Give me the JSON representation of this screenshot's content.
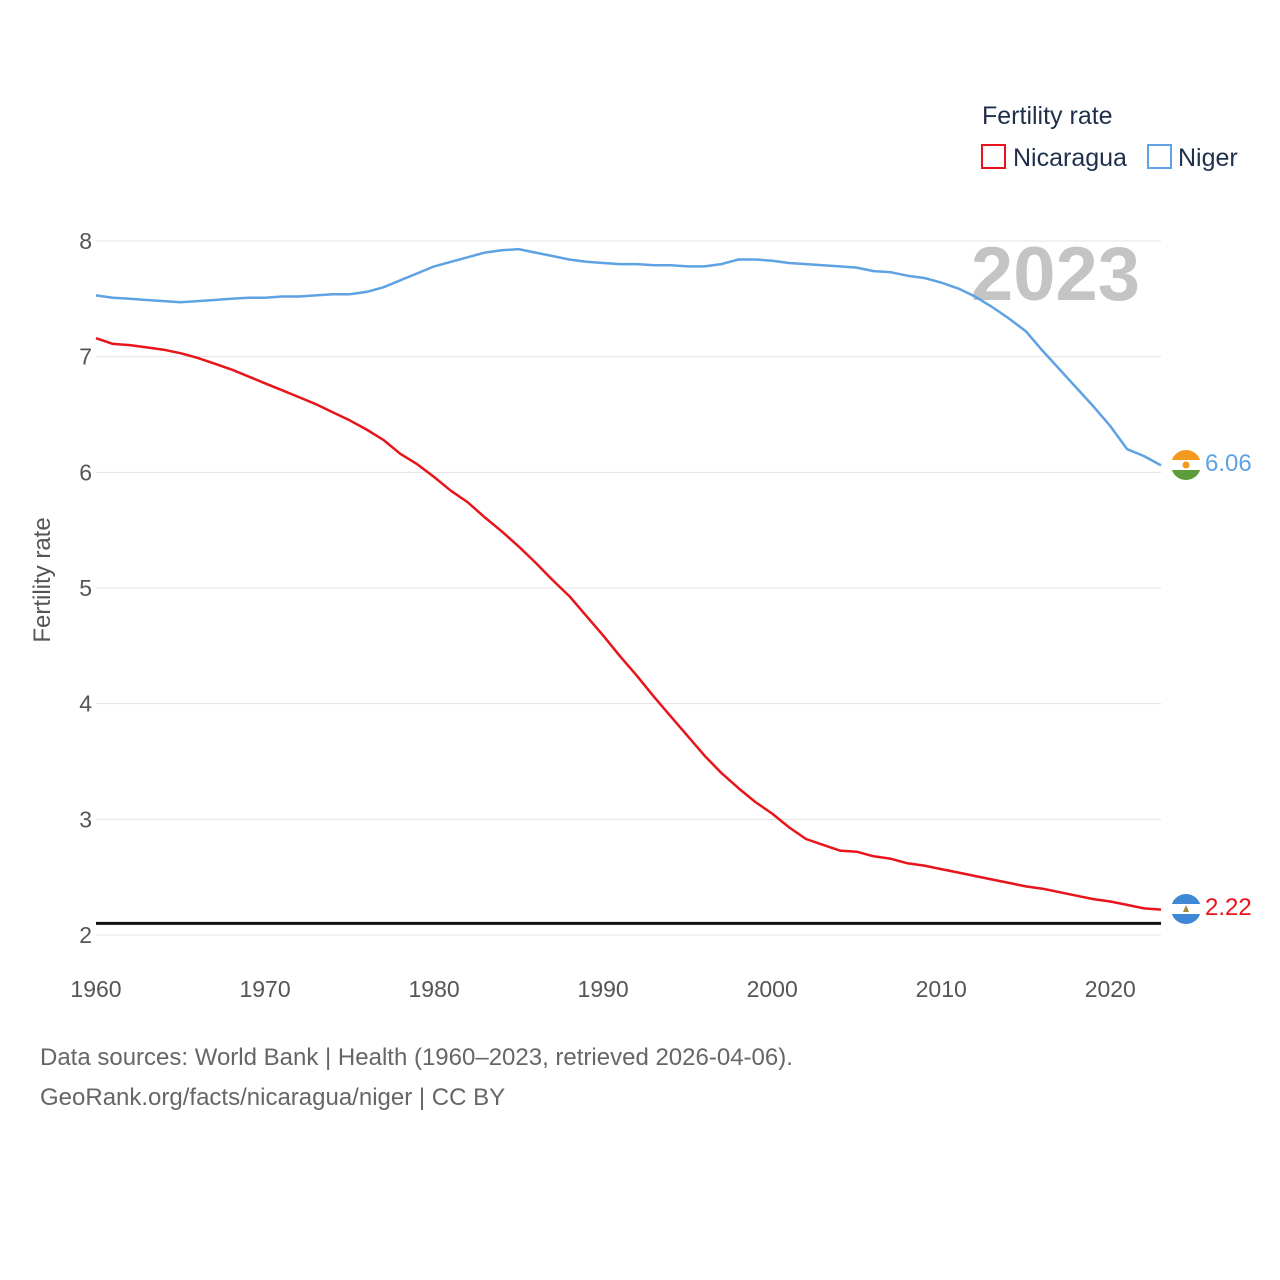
{
  "chart_data": {
    "type": "line",
    "title": "Fertility rate",
    "ylabel": "Fertility rate",
    "xlabel": "",
    "xlim": [
      1960,
      2023
    ],
    "ylim": [
      2,
      8
    ],
    "xticks": [
      1960,
      1970,
      1980,
      1990,
      2000,
      2010,
      2020
    ],
    "yticks": [
      2,
      3,
      4,
      5,
      6,
      7,
      8
    ],
    "year_display": "2023",
    "reference_line": 2.1,
    "legend": [
      "Nicaragua",
      "Niger"
    ],
    "series": [
      {
        "name": "Nicaragua",
        "color": "#e8141b",
        "end_label": "2.22",
        "flag_icon": "nicaragua-flag-icon",
        "x": [
          1960,
          1961,
          1962,
          1963,
          1964,
          1965,
          1966,
          1967,
          1968,
          1969,
          1970,
          1971,
          1972,
          1973,
          1974,
          1975,
          1976,
          1977,
          1978,
          1979,
          1980,
          1981,
          1982,
          1983,
          1984,
          1985,
          1986,
          1987,
          1988,
          1989,
          1990,
          1991,
          1992,
          1993,
          1994,
          1995,
          1996,
          1997,
          1998,
          1999,
          2000,
          2001,
          2002,
          2003,
          2004,
          2005,
          2006,
          2007,
          2008,
          2009,
          2010,
          2011,
          2012,
          2013,
          2014,
          2015,
          2016,
          2017,
          2018,
          2019,
          2020,
          2021,
          2022,
          2023
        ],
        "values": [
          7.16,
          7.11,
          7.1,
          7.08,
          7.06,
          7.03,
          6.99,
          6.94,
          6.89,
          6.83,
          6.77,
          6.71,
          6.65,
          6.59,
          6.52,
          6.45,
          6.37,
          6.28,
          6.16,
          6.07,
          5.96,
          5.84,
          5.74,
          5.61,
          5.49,
          5.36,
          5.22,
          5.07,
          4.93,
          4.76,
          4.59,
          4.41,
          4.24,
          4.06,
          3.89,
          3.72,
          3.55,
          3.4,
          3.27,
          3.15,
          3.05,
          2.93,
          2.83,
          2.78,
          2.73,
          2.72,
          2.68,
          2.66,
          2.62,
          2.6,
          2.57,
          2.54,
          2.51,
          2.48,
          2.45,
          2.42,
          2.4,
          2.37,
          2.34,
          2.31,
          2.29,
          2.26,
          2.23,
          2.22
        ]
      },
      {
        "name": "Niger",
        "color": "#5fa2e3",
        "end_label": "6.06",
        "flag_icon": "niger-flag-icon",
        "x": [
          1960,
          1961,
          1962,
          1963,
          1964,
          1965,
          1966,
          1967,
          1968,
          1969,
          1970,
          1971,
          1972,
          1973,
          1974,
          1975,
          1976,
          1977,
          1978,
          1979,
          1980,
          1981,
          1982,
          1983,
          1984,
          1985,
          1986,
          1987,
          1988,
          1989,
          1990,
          1991,
          1992,
          1993,
          1994,
          1995,
          1996,
          1997,
          1998,
          1999,
          2000,
          2001,
          2002,
          2003,
          2004,
          2005,
          2006,
          2007,
          2008,
          2009,
          2010,
          2011,
          2012,
          2013,
          2014,
          2015,
          2016,
          2017,
          2018,
          2019,
          2020,
          2021,
          2022,
          2023
        ],
        "values": [
          7.53,
          7.51,
          7.5,
          7.49,
          7.48,
          7.47,
          7.48,
          7.49,
          7.5,
          7.51,
          7.51,
          7.52,
          7.52,
          7.53,
          7.54,
          7.54,
          7.56,
          7.6,
          7.66,
          7.72,
          7.78,
          7.82,
          7.86,
          7.9,
          7.92,
          7.93,
          7.9,
          7.87,
          7.84,
          7.82,
          7.81,
          7.8,
          7.8,
          7.79,
          7.79,
          7.78,
          7.78,
          7.8,
          7.84,
          7.84,
          7.83,
          7.81,
          7.8,
          7.79,
          7.78,
          7.77,
          7.74,
          7.73,
          7.7,
          7.68,
          7.64,
          7.59,
          7.52,
          7.43,
          7.33,
          7.22,
          7.05,
          6.89,
          6.73,
          6.57,
          6.4,
          6.2,
          6.14,
          6.06
        ]
      }
    ]
  },
  "footer": {
    "line1": "Data sources: World Bank | Health (1960–2023, retrieved 2026-04-06).",
    "line2": "GeoRank.org/facts/nicaragua/niger | CC BY"
  }
}
